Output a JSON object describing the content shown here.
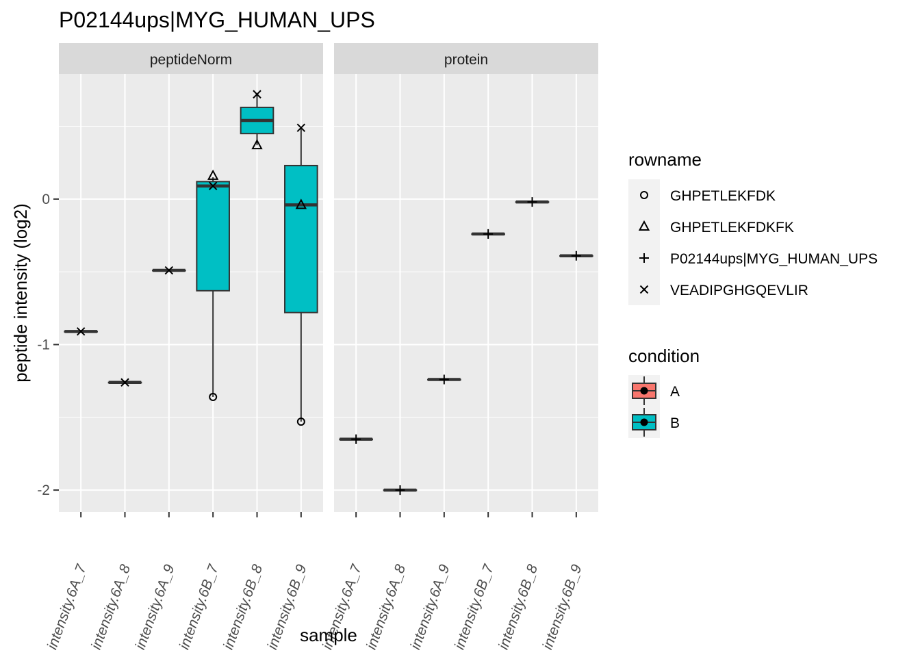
{
  "chart_data": {
    "type": "box",
    "title": "P02144ups|MYG_HUMAN_UPS",
    "xlabel": "sample",
    "ylabel": "peptide intensity (log2)",
    "ylim": [
      -2.15,
      0.86
    ],
    "y_ticks": [
      0,
      -1,
      -2
    ],
    "categories": [
      "intensity.6A_7",
      "intensity.6A_8",
      "intensity.6A_9",
      "intensity.6B_7",
      "intensity.6B_8",
      "intensity.6B_9"
    ],
    "facets": [
      {
        "name": "peptideNorm",
        "boxes": [
          {
            "sample": "intensity.6A_7",
            "condition": "A",
            "min": -0.91,
            "q1": -0.91,
            "median": -0.91,
            "q3": -0.91,
            "max": -0.91
          },
          {
            "sample": "intensity.6A_8",
            "condition": "A",
            "min": -1.26,
            "q1": -1.26,
            "median": -1.26,
            "q3": -1.26,
            "max": -1.26
          },
          {
            "sample": "intensity.6A_9",
            "condition": "A",
            "min": -0.49,
            "q1": -0.49,
            "median": -0.49,
            "q3": -0.49,
            "max": -0.49
          },
          {
            "sample": "intensity.6B_7",
            "condition": "B",
            "min": -1.36,
            "q1": -0.63,
            "median": 0.09,
            "q3": 0.12,
            "max": 0.15
          },
          {
            "sample": "intensity.6B_8",
            "condition": "B",
            "min": 0.37,
            "q1": 0.45,
            "median": 0.54,
            "q3": 0.63,
            "max": 0.72
          },
          {
            "sample": "intensity.6B_9",
            "condition": "B",
            "min": -1.53,
            "q1": -0.78,
            "median": -0.04,
            "q3": 0.23,
            "max": 0.49
          }
        ],
        "points": [
          {
            "sample": "intensity.6A_7",
            "rowname": "VEADIPGHGQEVLIR",
            "value": -0.91
          },
          {
            "sample": "intensity.6A_8",
            "rowname": "VEADIPGHGQEVLIR",
            "value": -1.26
          },
          {
            "sample": "intensity.6A_9",
            "rowname": "VEADIPGHGQEVLIR",
            "value": -0.49
          },
          {
            "sample": "intensity.6B_7",
            "rowname": "GHPETLEKFDK",
            "value": -1.36
          },
          {
            "sample": "intensity.6B_7",
            "rowname": "GHPETLEKFDKFK",
            "value": 0.16
          },
          {
            "sample": "intensity.6B_7",
            "rowname": "VEADIPGHGQEVLIR",
            "value": 0.09
          },
          {
            "sample": "intensity.6B_8",
            "rowname": "GHPETLEKFDKFK",
            "value": 0.37
          },
          {
            "sample": "intensity.6B_8",
            "rowname": "VEADIPGHGQEVLIR",
            "value": 0.72
          },
          {
            "sample": "intensity.6B_9",
            "rowname": "GHPETLEKFDK",
            "value": -1.53
          },
          {
            "sample": "intensity.6B_9",
            "rowname": "GHPETLEKFDKFK",
            "value": -0.04
          },
          {
            "sample": "intensity.6B_9",
            "rowname": "VEADIPGHGQEVLIR",
            "value": 0.49
          }
        ]
      },
      {
        "name": "protein",
        "boxes": [
          {
            "sample": "intensity.6A_7",
            "condition": "A",
            "min": -1.65,
            "q1": -1.65,
            "median": -1.65,
            "q3": -1.65,
            "max": -1.65
          },
          {
            "sample": "intensity.6A_8",
            "condition": "A",
            "min": -2.0,
            "q1": -2.0,
            "median": -2.0,
            "q3": -2.0,
            "max": -2.0
          },
          {
            "sample": "intensity.6A_9",
            "condition": "A",
            "min": -1.24,
            "q1": -1.24,
            "median": -1.24,
            "q3": -1.24,
            "max": -1.24
          },
          {
            "sample": "intensity.6B_7",
            "condition": "B",
            "min": -0.24,
            "q1": -0.24,
            "median": -0.24,
            "q3": -0.24,
            "max": -0.24
          },
          {
            "sample": "intensity.6B_8",
            "condition": "B",
            "min": -0.02,
            "q1": -0.02,
            "median": -0.02,
            "q3": -0.02,
            "max": -0.02
          },
          {
            "sample": "intensity.6B_9",
            "condition": "B",
            "min": -0.39,
            "q1": -0.39,
            "median": -0.39,
            "q3": -0.39,
            "max": -0.39
          }
        ],
        "points": [
          {
            "sample": "intensity.6A_7",
            "rowname": "P02144ups|MYG_HUMAN_UPS",
            "value": -1.65
          },
          {
            "sample": "intensity.6A_8",
            "rowname": "P02144ups|MYG_HUMAN_UPS",
            "value": -2.0
          },
          {
            "sample": "intensity.6A_9",
            "rowname": "P02144ups|MYG_HUMAN_UPS",
            "value": -1.24
          },
          {
            "sample": "intensity.6B_7",
            "rowname": "P02144ups|MYG_HUMAN_UPS",
            "value": -0.24
          },
          {
            "sample": "intensity.6B_8",
            "rowname": "P02144ups|MYG_HUMAN_UPS",
            "value": -0.02
          },
          {
            "sample": "intensity.6B_9",
            "rowname": "P02144ups|MYG_HUMAN_UPS",
            "value": -0.39
          }
        ]
      }
    ],
    "legends": {
      "rowname": {
        "title": "rowname",
        "items": [
          {
            "label": "GHPETLEKFDK",
            "shape": "circle"
          },
          {
            "label": "GHPETLEKFDKFK",
            "shape": "triangle"
          },
          {
            "label": "P02144ups|MYG_HUMAN_UPS",
            "shape": "plus"
          },
          {
            "label": "VEADIPGHGQEVLIR",
            "shape": "cross"
          }
        ]
      },
      "condition": {
        "title": "condition",
        "items": [
          {
            "label": "A",
            "color": "#F8766D"
          },
          {
            "label": "B",
            "color": "#00BFC4"
          }
        ]
      }
    },
    "panel_background": "#EBEBEB",
    "strip_background": "#D9D9D9",
    "grid": true,
    "legend_position": "right"
  }
}
